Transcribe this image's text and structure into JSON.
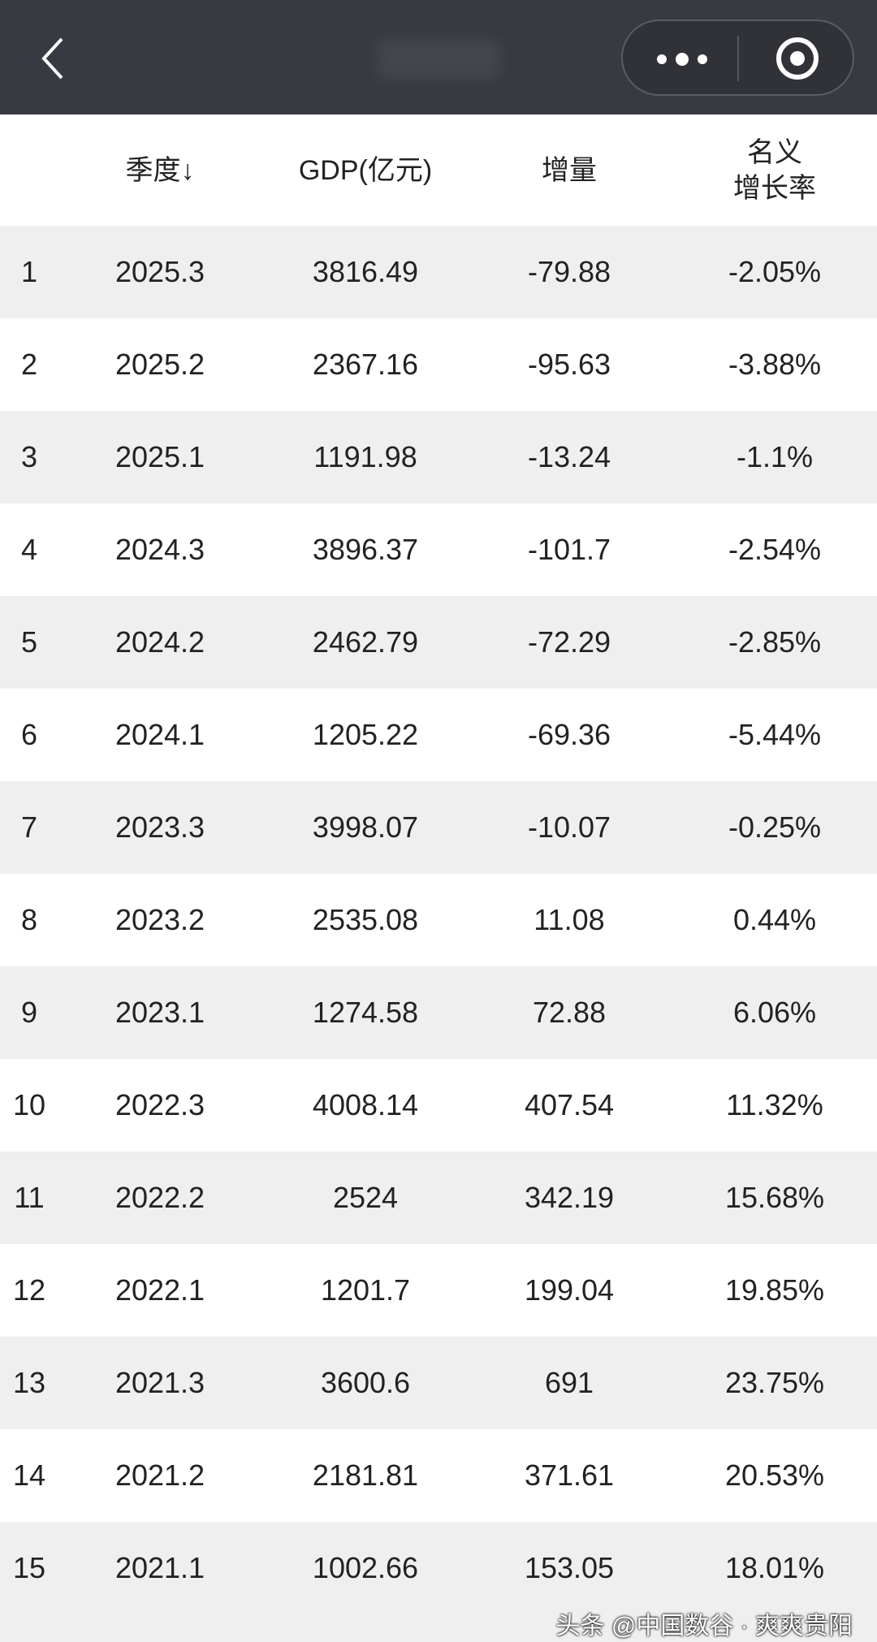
{
  "header": {
    "back_icon": "chevron-left-icon",
    "more_icon": "more-dots-icon",
    "close_icon": "target-circle-icon"
  },
  "columns": {
    "quarter": "季度↓",
    "gdp": "GDP(亿元)",
    "increase": "增量",
    "rate_line1": "名义",
    "rate_line2": "增长率"
  },
  "rows": [
    {
      "idx": "1",
      "quarter": "2025.3",
      "gdp": "3816.49",
      "increase": "-79.88",
      "rate": "-2.05%"
    },
    {
      "idx": "2",
      "quarter": "2025.2",
      "gdp": "2367.16",
      "increase": "-95.63",
      "rate": "-3.88%"
    },
    {
      "idx": "3",
      "quarter": "2025.1",
      "gdp": "1191.98",
      "increase": "-13.24",
      "rate": "-1.1%"
    },
    {
      "idx": "4",
      "quarter": "2024.3",
      "gdp": "3896.37",
      "increase": "-101.7",
      "rate": "-2.54%"
    },
    {
      "idx": "5",
      "quarter": "2024.2",
      "gdp": "2462.79",
      "increase": "-72.29",
      "rate": "-2.85%"
    },
    {
      "idx": "6",
      "quarter": "2024.1",
      "gdp": "1205.22",
      "increase": "-69.36",
      "rate": "-5.44%"
    },
    {
      "idx": "7",
      "quarter": "2023.3",
      "gdp": "3998.07",
      "increase": "-10.07",
      "rate": "-0.25%"
    },
    {
      "idx": "8",
      "quarter": "2023.2",
      "gdp": "2535.08",
      "increase": "11.08",
      "rate": "0.44%"
    },
    {
      "idx": "9",
      "quarter": "2023.1",
      "gdp": "1274.58",
      "increase": "72.88",
      "rate": "6.06%"
    },
    {
      "idx": "10",
      "quarter": "2022.3",
      "gdp": "4008.14",
      "increase": "407.54",
      "rate": "11.32%"
    },
    {
      "idx": "11",
      "quarter": "2022.2",
      "gdp": "2524",
      "increase": "342.19",
      "rate": "15.68%"
    },
    {
      "idx": "12",
      "quarter": "2022.1",
      "gdp": "1201.7",
      "increase": "199.04",
      "rate": "19.85%"
    },
    {
      "idx": "13",
      "quarter": "2021.3",
      "gdp": "3600.6",
      "increase": "691",
      "rate": "23.75%"
    },
    {
      "idx": "14",
      "quarter": "2021.2",
      "gdp": "2181.81",
      "increase": "371.61",
      "rate": "20.53%"
    },
    {
      "idx": "15",
      "quarter": "2021.1",
      "gdp": "1002.66",
      "increase": "153.05",
      "rate": "18.01%"
    }
  ],
  "watermark": "头条 @中国数谷 · 爽爽贵阳",
  "colors": {
    "topbar": "#383a41",
    "row_alt": "#efefef"
  }
}
